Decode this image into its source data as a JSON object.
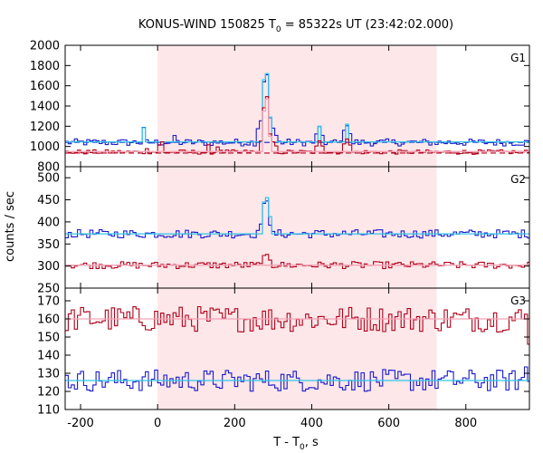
{
  "chart_data": {
    "type": "line",
    "title_main": "KONUS-WIND 150825 T",
    "title_sub": "0",
    "title_rest": " = 85322s UT (23:42:02.000)",
    "xlabel_main": "T - T",
    "xlabel_sub": "0",
    "xlabel_rest": ", s",
    "ylabel": "counts / sec",
    "xlim": [
      -240,
      965
    ],
    "xticks": [
      -200,
      0,
      200,
      400,
      600,
      800
    ],
    "xtick_labels": [
      "-200",
      "0",
      "200",
      "400",
      "600",
      "800"
    ],
    "highlight_interval": [
      0,
      724
    ],
    "colors": {
      "highlight": "#fde7e9",
      "dark_red": "#b0001a",
      "pink_fit": "#f5a3b5",
      "blue": "#1a1acc",
      "cyan": "#33c5e8"
    },
    "panels": [
      {
        "label": "G1",
        "ylim": [
          800,
          2000
        ],
        "yticks": [
          800,
          1000,
          1200,
          1400,
          1600,
          1800,
          2000
        ],
        "ytick_labels": [
          "800",
          "1000",
          "1200",
          "1400",
          "1600",
          "1800",
          "2000"
        ],
        "series": [
          {
            "color": "blue",
            "baseline": 1040,
            "noise": 22,
            "spikes": [
              [
                -40,
                1180
              ],
              [
                40,
                1110
              ],
              [
                255,
                1180
              ],
              [
                262,
                1260
              ],
              [
                268,
                1420
              ],
              [
                274,
                1640
              ],
              [
                278,
                1800
              ],
              [
                282,
                1700
              ],
              [
                286,
                1500
              ],
              [
                290,
                1280
              ],
              [
                296,
                1180
              ],
              [
                302,
                1110
              ],
              [
                410,
                1120
              ],
              [
                418,
                1190
              ],
              [
                424,
                1110
              ],
              [
                480,
                1150
              ],
              [
                488,
                1210
              ],
              [
                494,
                1120
              ]
            ]
          },
          {
            "color": "cyan",
            "baseline": 1045,
            "noise": 0,
            "spikes": [
              [
                -40,
                1185
              ],
              [
                268,
                1430
              ],
              [
                274,
                1660
              ],
              [
                278,
                1820
              ],
              [
                282,
                1720
              ],
              [
                286,
                1510
              ],
              [
                290,
                1290
              ],
              [
                418,
                1200
              ],
              [
                488,
                1220
              ]
            ]
          },
          {
            "color": "dark_red",
            "baseline": 945,
            "noise": 14,
            "spikes": [
              [
                -30,
                985
              ],
              [
                0,
                1010
              ],
              [
                10,
                1045
              ],
              [
                130,
                1010
              ],
              [
                150,
                1000
              ],
              [
                262,
                1060
              ],
              [
                268,
                1180
              ],
              [
                274,
                1380
              ],
              [
                278,
                1560
              ],
              [
                282,
                1490
              ],
              [
                286,
                1300
              ],
              [
                290,
                1120
              ],
              [
                296,
                1040
              ],
              [
                302,
                1000
              ],
              [
                410,
                1000
              ],
              [
                418,
                1060
              ],
              [
                424,
                1010
              ],
              [
                480,
                1020
              ],
              [
                488,
                1080
              ],
              [
                494,
                1010
              ]
            ]
          },
          {
            "color": "pink_fit",
            "baseline": 950,
            "noise": 0,
            "spikes": [
              [
                268,
                1150
              ],
              [
                274,
                1350
              ],
              [
                278,
                1530
              ],
              [
                282,
                1470
              ],
              [
                286,
                1270
              ],
              [
                290,
                1100
              ]
            ]
          }
        ],
        "dashed_levels": [
          {
            "color": "blue",
            "value": 1040
          },
          {
            "color": "dark_red",
            "value": 935
          }
        ]
      },
      {
        "label": "G2",
        "ylim": [
          250,
          525
        ],
        "yticks": [
          250,
          300,
          350,
          400,
          450,
          500
        ],
        "ytick_labels": [
          "250",
          "300",
          "350",
          "400",
          "450",
          "500"
        ],
        "series": [
          {
            "color": "blue",
            "baseline": 373,
            "noise": 6,
            "spikes": [
              [
                262,
                395
              ],
              [
                268,
                410
              ],
              [
                274,
                440
              ],
              [
                278,
                480
              ],
              [
                282,
                450
              ],
              [
                286,
                410
              ],
              [
                290,
                390
              ]
            ]
          },
          {
            "color": "cyan",
            "baseline": 373,
            "noise": 0,
            "spikes": [
              [
                268,
                415
              ],
              [
                274,
                445
              ],
              [
                278,
                490
              ],
              [
                282,
                455
              ],
              [
                286,
                412
              ]
            ]
          },
          {
            "color": "dark_red",
            "baseline": 302,
            "noise": 5,
            "spikes": [
              [
                274,
                322
              ],
              [
                278,
                340
              ],
              [
                282,
                325
              ],
              [
                286,
                315
              ]
            ]
          },
          {
            "color": "pink_fit",
            "baseline": 302,
            "noise": 0,
            "spikes": []
          }
        ],
        "dashed_levels": []
      },
      {
        "label": "G3",
        "ylim": [
          110,
          177
        ],
        "yticks": [
          110,
          120,
          130,
          140,
          150,
          160,
          170
        ],
        "ytick_labels": [
          "110",
          "120",
          "130",
          "140",
          "150",
          "160",
          "170"
        ],
        "series": [
          {
            "color": "dark_red",
            "baseline": 160,
            "noise": 4.5,
            "spikes": [
              [
                960,
                148
              ]
            ]
          },
          {
            "color": "pink_fit",
            "baseline": 160,
            "noise": 0,
            "spikes": []
          },
          {
            "color": "blue",
            "baseline": 126,
            "noise": 3.8,
            "spikes": [
              [
                950,
                134
              ]
            ]
          },
          {
            "color": "cyan",
            "baseline": 126,
            "noise": 0,
            "spikes": []
          }
        ],
        "dashed_levels": []
      }
    ],
    "bin_width": 8
  }
}
